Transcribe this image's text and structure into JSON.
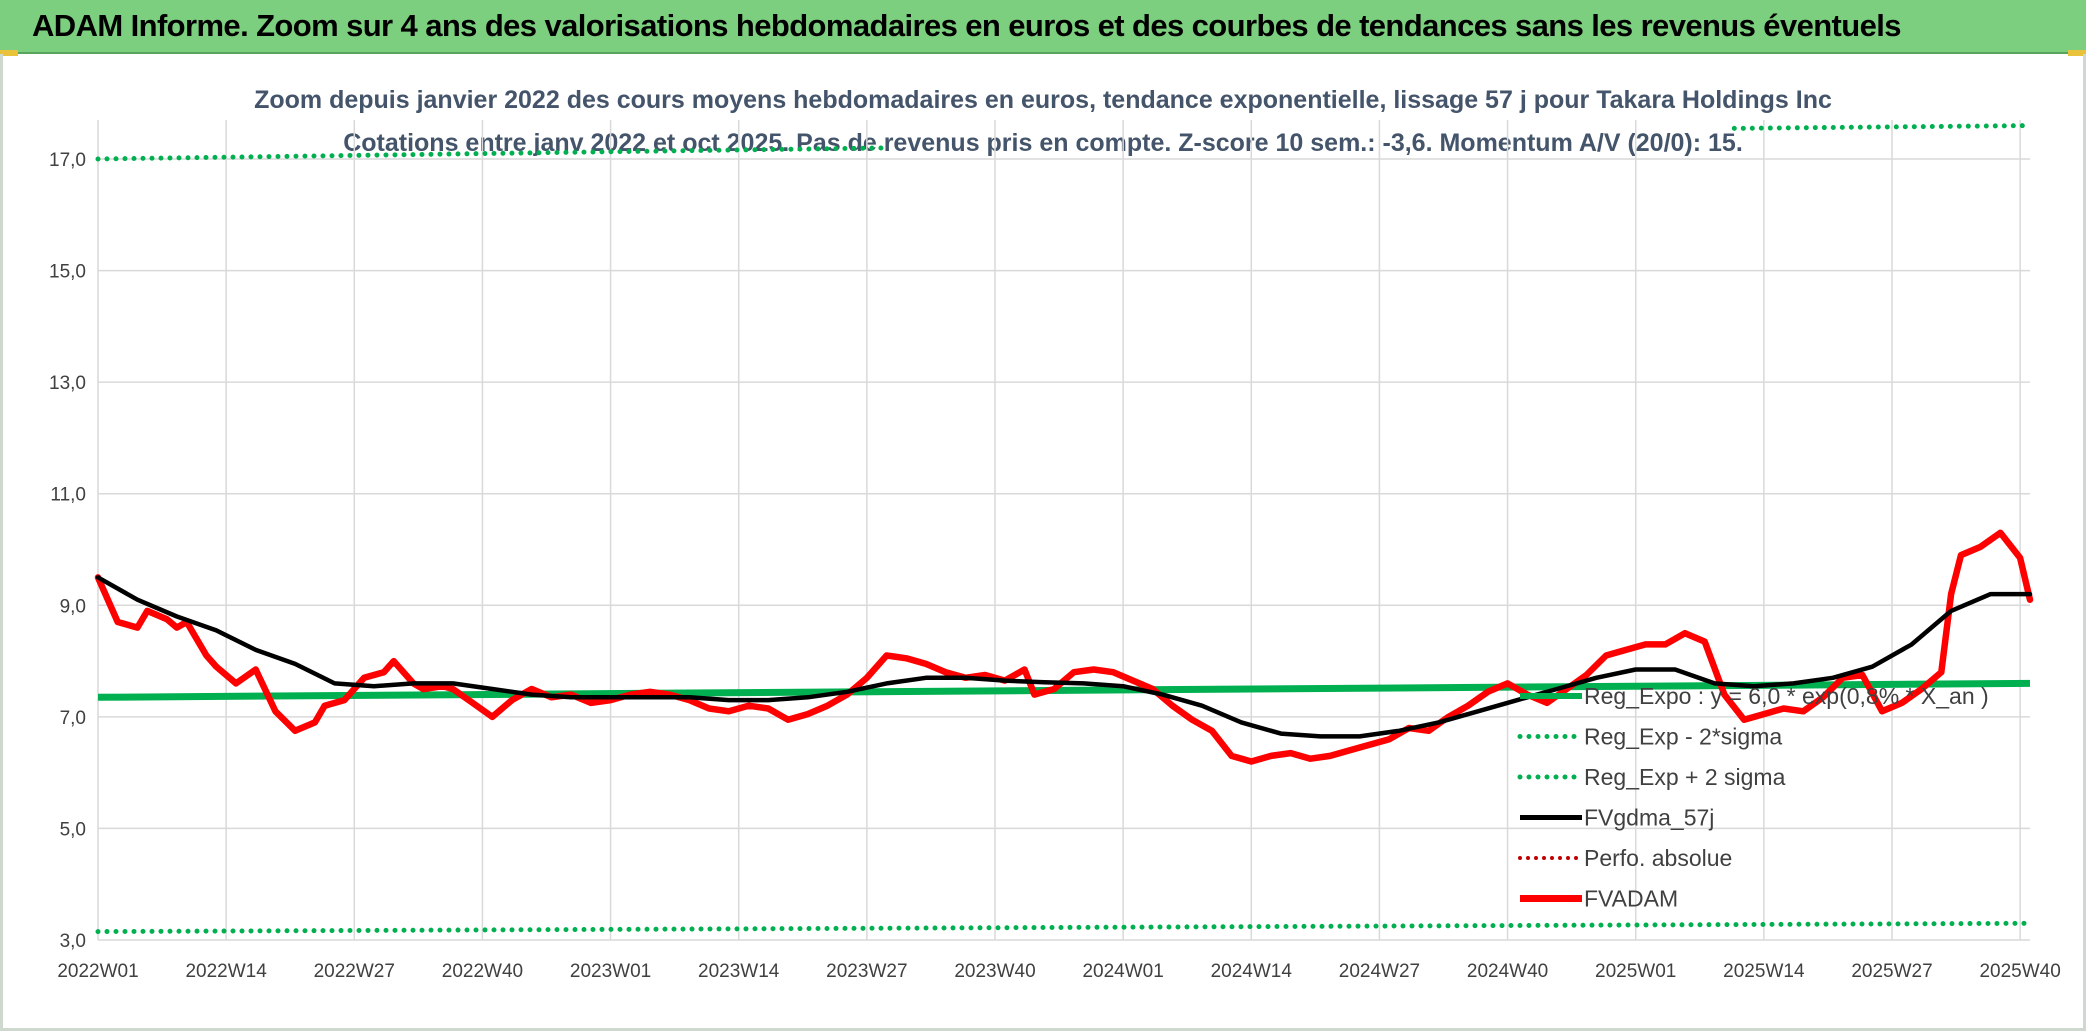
{
  "header": {
    "title": "ADAM Informe. Zoom sur 4 ans des valorisations hebdomadaires en euros et des courbes de tendances sans les revenus éventuels"
  },
  "colors": {
    "banner": "#7ccf7e",
    "trend": "#00b050",
    "fvgdma": "#000000",
    "fvadam": "#ff0000",
    "perfo": "#c00000"
  },
  "chart_data": {
    "type": "line",
    "title_line1": "Zoom depuis janvier 2022 des cours moyens hebdomadaires en euros, tendance exponentielle, lissage 57 j pour Takara Holdings Inc",
    "title_line2": "Cotations entre janv 2022 et oct 2025. Pas de revenus pris en compte. Z-score 10 sem.: -3,6. Momentum A/V (20/0): 15.",
    "ylim": [
      3.0,
      17.7
    ],
    "yticks": [
      "3,0",
      "5,0",
      "7,0",
      "9,0",
      "11,0",
      "13,0",
      "15,0",
      "17,0"
    ],
    "ytick_values": [
      3,
      5,
      7,
      9,
      11,
      13,
      15,
      17
    ],
    "xlim": [
      0,
      196
    ],
    "xtick_labels": [
      "2022W01",
      "2022W14",
      "2022W27",
      "2022W40",
      "2023W01",
      "2023W14",
      "2023W27",
      "2023W40",
      "2024W01",
      "2024W14",
      "2024W27",
      "2024W40",
      "2025W01",
      "2025W14",
      "2025W27",
      "2025W40"
    ],
    "xtick_positions": [
      0,
      13,
      26,
      39,
      52,
      65,
      78,
      91,
      104,
      117,
      130,
      143,
      156,
      169,
      182,
      195
    ],
    "grid": true,
    "legend": {
      "position": "bottom-right",
      "entries": [
        {
          "label": "Reg_Expo : y = 6,0 * exp(0,8% * X_an )",
          "style": "solid-green"
        },
        {
          "label": "Reg_Exp - 2*sigma",
          "style": "dotted-green"
        },
        {
          "label": "Reg_Exp + 2 sigma",
          "style": "dotted-green"
        },
        {
          "label": "FVgdma_57j",
          "style": "solid-black"
        },
        {
          "label": "Perfo. absolue",
          "style": "dotted-red"
        },
        {
          "label": "FVADAM",
          "style": "solid-red"
        }
      ]
    },
    "series": [
      {
        "name": "Reg_Expo",
        "x": [
          0,
          196
        ],
        "values": [
          7.35,
          7.6
        ]
      },
      {
        "name": "Reg_Exp - 2*sigma",
        "x": [
          0,
          196
        ],
        "values": [
          3.15,
          3.3
        ]
      },
      {
        "name": "Reg_Exp + 2 sigma",
        "x": [
          0,
          80
        ],
        "values": [
          17.0,
          17.2
        ],
        "x2": [
          166,
          196
        ],
        "values2": [
          17.55,
          17.6
        ]
      },
      {
        "name": "FVgdma_57j",
        "x": [
          0,
          4,
          8,
          12,
          16,
          20,
          24,
          28,
          32,
          36,
          40,
          44,
          48,
          52,
          56,
          60,
          64,
          68,
          72,
          76,
          80,
          84,
          88,
          92,
          96,
          100,
          104,
          108,
          112,
          116,
          120,
          124,
          128,
          132,
          136,
          140,
          144,
          148,
          152,
          156,
          160,
          164,
          168,
          172,
          176,
          180,
          184,
          188,
          192,
          196
        ],
        "values": [
          9.5,
          9.1,
          8.8,
          8.55,
          8.2,
          7.95,
          7.6,
          7.55,
          7.6,
          7.6,
          7.5,
          7.4,
          7.35,
          7.35,
          7.35,
          7.35,
          7.3,
          7.3,
          7.35,
          7.45,
          7.6,
          7.7,
          7.7,
          7.65,
          7.62,
          7.6,
          7.55,
          7.4,
          7.2,
          6.9,
          6.7,
          6.65,
          6.65,
          6.75,
          6.9,
          7.1,
          7.3,
          7.5,
          7.7,
          7.85,
          7.85,
          7.6,
          7.55,
          7.6,
          7.7,
          7.9,
          8.3,
          8.9,
          9.2,
          9.2
        ]
      },
      {
        "name": "FVADAM",
        "x": [
          0,
          2,
          4,
          5,
          7,
          8,
          9,
          11,
          12,
          14,
          16,
          18,
          20,
          22,
          23,
          25,
          27,
          29,
          30,
          32,
          33,
          35,
          36,
          38,
          40,
          42,
          44,
          46,
          48,
          50,
          52,
          54,
          56,
          58,
          60,
          62,
          64,
          66,
          68,
          70,
          72,
          74,
          76,
          78,
          80,
          82,
          84,
          86,
          88,
          90,
          92,
          94,
          95,
          97,
          99,
          101,
          103,
          105,
          107,
          109,
          111,
          113,
          115,
          117,
          119,
          121,
          123,
          125,
          127,
          129,
          131,
          133,
          135,
          137,
          139,
          141,
          143,
          145,
          147,
          149,
          151,
          153,
          155,
          157,
          159,
          161,
          163,
          165,
          167,
          169,
          171,
          173,
          175,
          177,
          179,
          181,
          183,
          185,
          187,
          188,
          189,
          191,
          193,
          195,
          196
        ],
        "values": [
          9.5,
          8.7,
          8.6,
          8.9,
          8.75,
          8.6,
          8.7,
          8.1,
          7.9,
          7.6,
          7.85,
          7.1,
          6.75,
          6.9,
          7.2,
          7.3,
          7.7,
          7.8,
          8.0,
          7.6,
          7.5,
          7.55,
          7.5,
          7.25,
          7.0,
          7.3,
          7.5,
          7.35,
          7.4,
          7.25,
          7.3,
          7.4,
          7.45,
          7.4,
          7.3,
          7.15,
          7.1,
          7.2,
          7.15,
          6.95,
          7.05,
          7.2,
          7.4,
          7.7,
          8.1,
          8.05,
          7.95,
          7.8,
          7.7,
          7.75,
          7.65,
          7.85,
          7.4,
          7.5,
          7.8,
          7.85,
          7.8,
          7.65,
          7.5,
          7.2,
          6.95,
          6.75,
          6.3,
          6.2,
          6.3,
          6.35,
          6.25,
          6.3,
          6.4,
          6.5,
          6.6,
          6.8,
          6.75,
          7.0,
          7.2,
          7.45,
          7.6,
          7.4,
          7.25,
          7.5,
          7.75,
          8.1,
          8.2,
          8.3,
          8.3,
          8.5,
          8.35,
          7.4,
          6.95,
          7.05,
          7.15,
          7.1,
          7.35,
          7.7,
          7.75,
          7.1,
          7.25,
          7.5,
          7.8,
          9.2,
          9.9,
          10.05,
          10.3,
          9.85,
          9.1
        ]
      }
    ]
  }
}
